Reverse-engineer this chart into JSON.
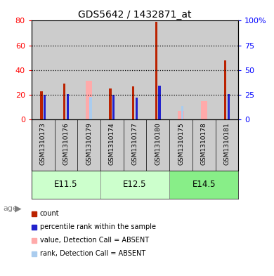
{
  "title": "GDS5642 / 1432871_at",
  "samples": [
    "GSM1310173",
    "GSM1310176",
    "GSM1310179",
    "GSM1310174",
    "GSM1310177",
    "GSM1310180",
    "GSM1310175",
    "GSM1310178",
    "GSM1310181"
  ],
  "age_groups": [
    {
      "label": "E11.5",
      "start": 0,
      "end": 3
    },
    {
      "label": "E12.5",
      "start": 3,
      "end": 6
    },
    {
      "label": "E14.5",
      "start": 6,
      "end": 9
    }
  ],
  "count_values": [
    23,
    29,
    0,
    25,
    27,
    79,
    0,
    0,
    48
  ],
  "percentile_values": [
    25,
    26,
    0,
    25,
    22,
    34,
    0,
    0,
    26
  ],
  "absent_value_values": [
    0,
    0,
    39,
    0,
    0,
    0,
    9,
    19,
    0
  ],
  "absent_rank_values": [
    0,
    0,
    23,
    0,
    0,
    0,
    14,
    0,
    0
  ],
  "count_color": "#BB2200",
  "percentile_color": "#2222CC",
  "absent_value_color": "#FFAAAA",
  "absent_rank_color": "#AACCEE",
  "ylim_left": [
    0,
    80
  ],
  "ylim_right": [
    0,
    100
  ],
  "yticks_left": [
    0,
    20,
    40,
    60,
    80
  ],
  "yticks_right": [
    0,
    25,
    50,
    75,
    100
  ],
  "ytick_labels_right": [
    "0",
    "25",
    "50",
    "75",
    "100%"
  ],
  "bg_color": "#CCCCCC",
  "age_light_color": "#CCFFCC",
  "age_dark_color": "#88EE88",
  "legend_items": [
    {
      "color": "#BB2200",
      "label": "count"
    },
    {
      "color": "#2222CC",
      "label": "percentile rank within the sample"
    },
    {
      "color": "#FFAAAA",
      "label": "value, Detection Call = ABSENT"
    },
    {
      "color": "#AACCEE",
      "label": "rank, Detection Call = ABSENT"
    }
  ]
}
